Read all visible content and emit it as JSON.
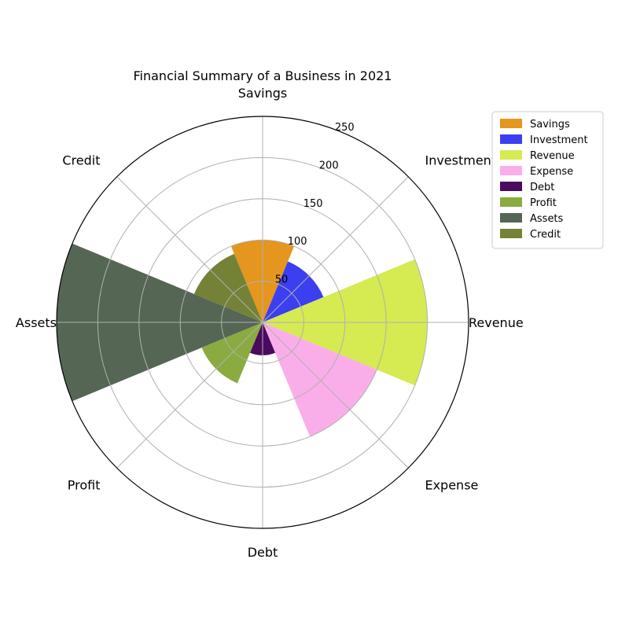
{
  "chart_data": {
    "type": "polar-bar",
    "title": "Financial Summary of a Business in 2021",
    "categories": [
      "Savings",
      "Investment",
      "Revenue",
      "Expense",
      "Debt",
      "Profit",
      "Assets",
      "Credit"
    ],
    "values": [
      100,
      80,
      200,
      150,
      40,
      80,
      250,
      90
    ],
    "colors": [
      "#e5961e",
      "#3b3ff0",
      "#d6ea52",
      "#f9aee9",
      "#4a0a5e",
      "#8aab3f",
      "#556655",
      "#738236"
    ],
    "rlim": [
      0,
      250
    ],
    "rticks": [
      50,
      100,
      150,
      200,
      250
    ],
    "grid": true,
    "legend_position": "top-right",
    "direction": "clockwise",
    "start": "top"
  }
}
